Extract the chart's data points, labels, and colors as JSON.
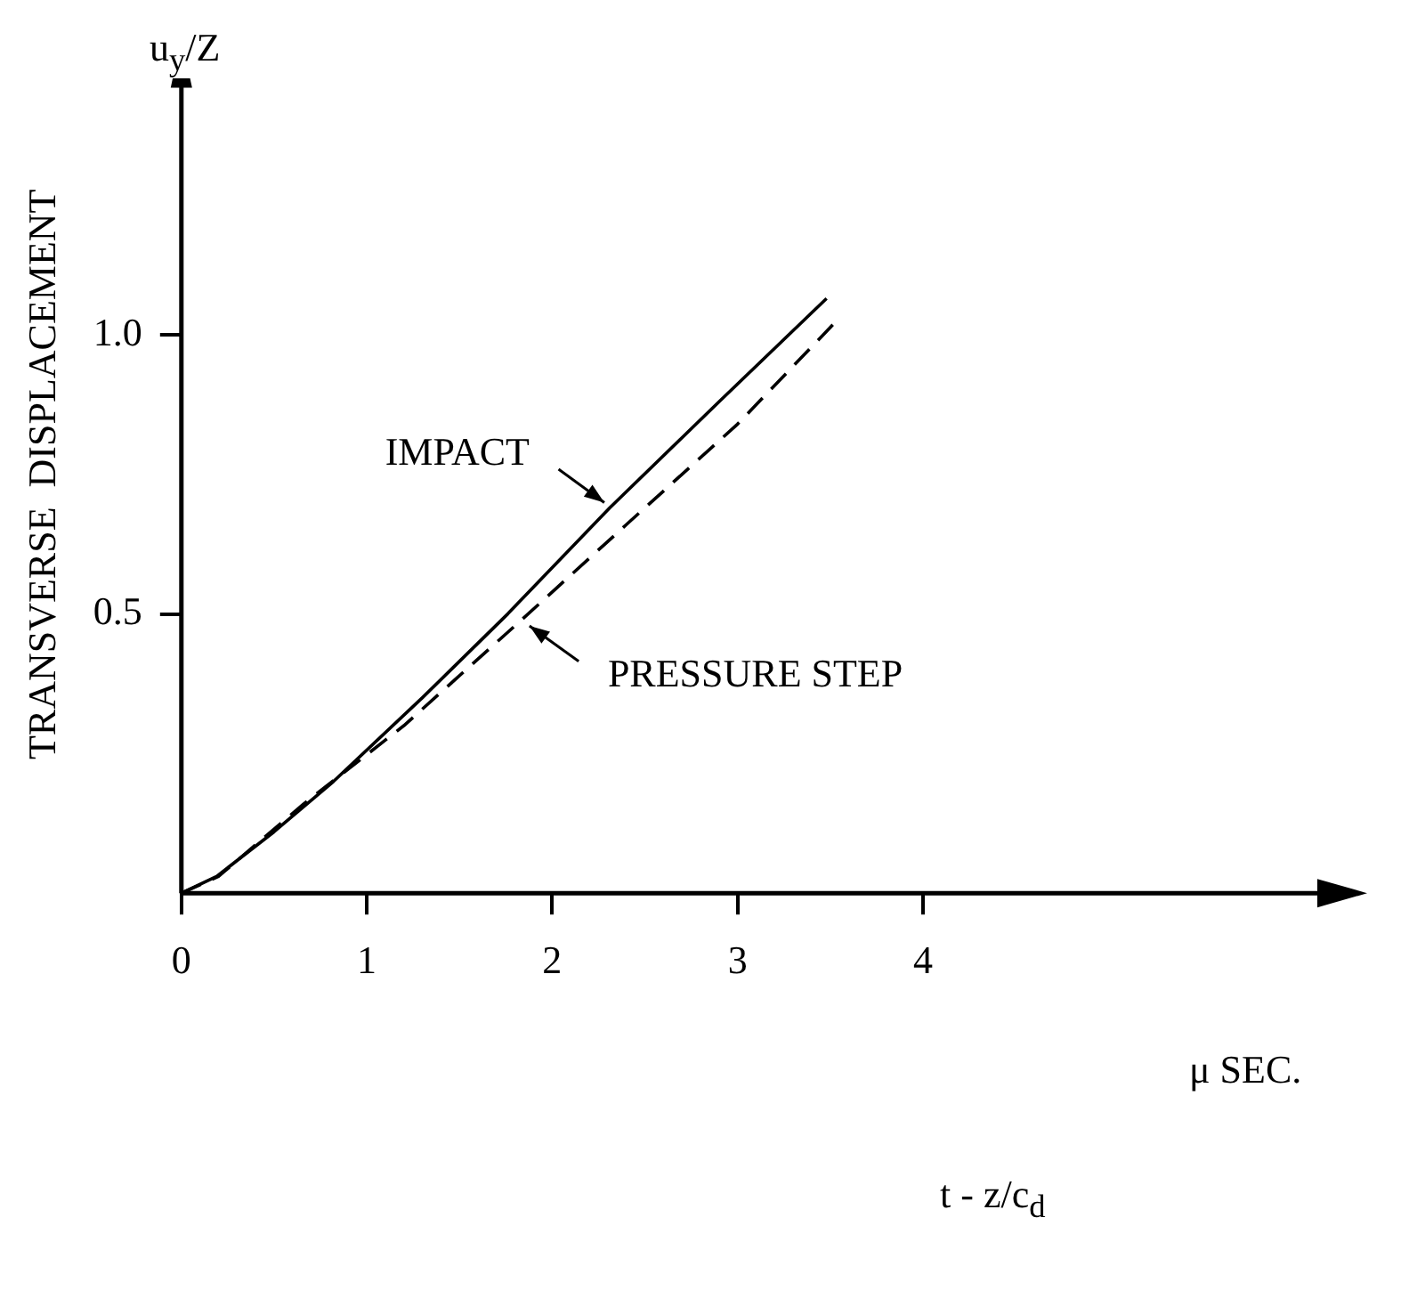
{
  "chart_data": {
    "type": "line",
    "ylabel": "TRANSVERSE  DISPLACEMENT",
    "xlabel": "t - z/c$_{d}$",
    "annotations": [
      "μ SEC.",
      "u$_{y}$/Z"
    ],
    "xlim": [
      0,
      6.3
    ],
    "xticks": [
      0,
      1,
      2,
      3,
      4
    ],
    "ylim": [
      0,
      1.5
    ],
    "yticks": [
      {
        "value": 0.5,
        "label": "0.5"
      },
      {
        "value": 1,
        "label": "1.0"
      }
    ],
    "grid": false,
    "legend": false,
    "marker": "none",
    "tick_labels": "xy",
    "series": [
      {
        "name": "IMPACT",
        "color": "#000000",
        "line_style": "solid",
        "x": [
          0,
          0.19,
          0.5,
          0.82,
          1.3,
          1.76,
          2.31,
          2.9,
          3.48
        ],
        "values": [
          0,
          0.03,
          0.11,
          0.2,
          0.35,
          0.5,
          0.69,
          0.88,
          1.065
        ]
      },
      {
        "name": "PRESSURE STEP",
        "color": "#000000",
        "line_style": "dashed",
        "x": [
          0,
          0.2,
          0.66,
          1.2,
          1.82,
          2.4,
          3,
          3.52
        ],
        "values": [
          0,
          0.03,
          0.16,
          0.3,
          0.485,
          0.66,
          0.84,
          1.02
        ]
      }
    ]
  }
}
